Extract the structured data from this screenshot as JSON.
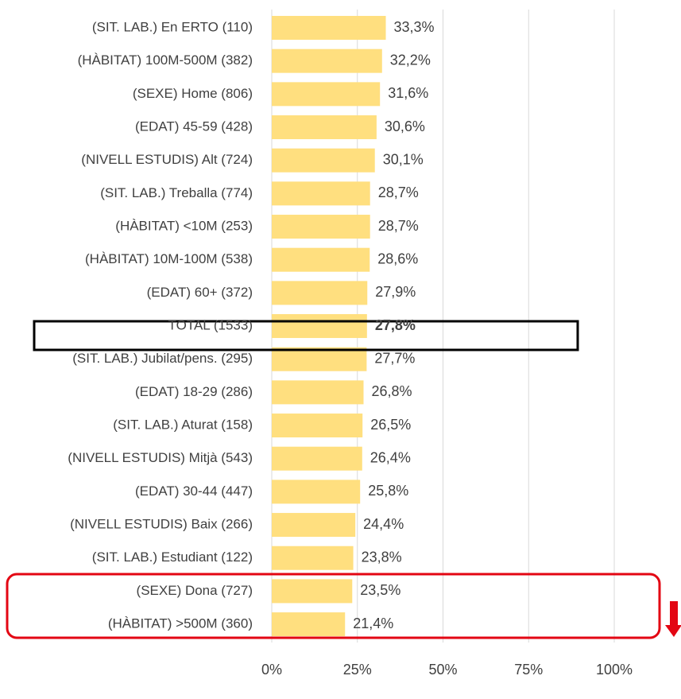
{
  "chart_data": {
    "type": "bar",
    "orientation": "horizontal",
    "categories": [
      "(SIT. LAB.) En ERTO (110)",
      "(HÀBITAT) 100M-500M (382)",
      "(SEXE) Home (806)",
      "(EDAT) 45-59 (428)",
      "(NIVELL ESTUDIS) Alt (724)",
      "(SIT. LAB.) Treballa (774)",
      "(HÀBITAT) <10M (253)",
      "(HÀBITAT) 10M-100M (538)",
      "(EDAT) 60+ (372)",
      "TOTAL (1533)",
      "(SIT. LAB.) Jubilat/pens. (295)",
      "(EDAT) 18-29 (286)",
      "(SIT. LAB.) Aturat (158)",
      "(NIVELL ESTUDIS) Mitjà (543)",
      "(EDAT) 30-44 (447)",
      "(NIVELL ESTUDIS) Baix (266)",
      "(SIT. LAB.) Estudiant (122)",
      "(SEXE) Dona (727)",
      "(HÀBITAT) >500M (360)"
    ],
    "values": [
      33.3,
      32.2,
      31.6,
      30.6,
      30.1,
      28.7,
      28.7,
      28.6,
      27.9,
      27.8,
      27.7,
      26.8,
      26.5,
      26.4,
      25.8,
      24.4,
      23.8,
      23.5,
      21.4
    ],
    "value_labels": [
      "33,3%",
      "32,2%",
      "31,6%",
      "30,6%",
      "30,1%",
      "28,7%",
      "28,7%",
      "28,6%",
      "27,9%",
      "27,8%",
      "27,7%",
      "26,8%",
      "26,5%",
      "26,4%",
      "25,8%",
      "24,4%",
      "23,8%",
      "23,5%",
      "21,4%"
    ],
    "color": "#ffdf7f",
    "xlim": [
      0,
      100
    ],
    "xticks": [
      {
        "value": 0,
        "label": "0%"
      },
      {
        "value": 25,
        "label": "25%"
      },
      {
        "value": 50,
        "label": "50%"
      },
      {
        "value": 75,
        "label": "75%"
      },
      {
        "value": 100,
        "label": "100%"
      }
    ],
    "grid": true
  }
}
